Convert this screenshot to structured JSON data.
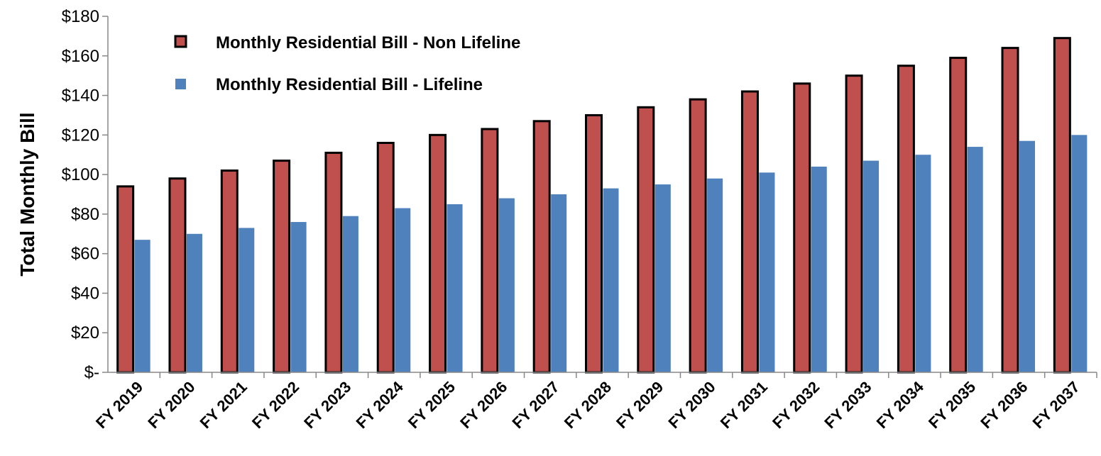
{
  "chart_data": {
    "type": "bar",
    "title": "",
    "xlabel": "",
    "ylabel": "Total Monthly Bill",
    "ylim": [
      0,
      180
    ],
    "yticks": [
      0,
      20,
      40,
      60,
      80,
      100,
      120,
      140,
      160,
      180
    ],
    "ytick_labels": [
      "$-",
      "$20",
      "$40",
      "$60",
      "$80",
      "$100",
      "$120",
      "$140",
      "$160",
      "$180"
    ],
    "grid": false,
    "legend_position": "top-left",
    "categories": [
      "FY 2019",
      "FY 2020",
      "FY 2021",
      "FY 2022",
      "FY 2023",
      "FY 2024",
      "FY 2025",
      "FY 2026",
      "FY 2027",
      "FY 2028",
      "FY 2029",
      "FY 2030",
      "FY 2031",
      "FY 2032",
      "FY 2033",
      "FY 2034",
      "FY 2035",
      "FY 2036",
      "FY 2037"
    ],
    "series": [
      {
        "name": "Monthly Residential Bill - Non Lifeline",
        "color": "#c0504d",
        "outline": "#000000",
        "values": [
          94,
          98,
          102,
          107,
          111,
          116,
          120,
          123,
          127,
          130,
          134,
          138,
          142,
          146,
          150,
          155,
          159,
          164,
          169
        ]
      },
      {
        "name": "Monthly Residential Bill - Lifeline",
        "color": "#4f81bd",
        "values": [
          67,
          70,
          73,
          76,
          79,
          83,
          85,
          88,
          90,
          93,
          95,
          98,
          101,
          104,
          107,
          110,
          114,
          117,
          120
        ]
      }
    ]
  }
}
